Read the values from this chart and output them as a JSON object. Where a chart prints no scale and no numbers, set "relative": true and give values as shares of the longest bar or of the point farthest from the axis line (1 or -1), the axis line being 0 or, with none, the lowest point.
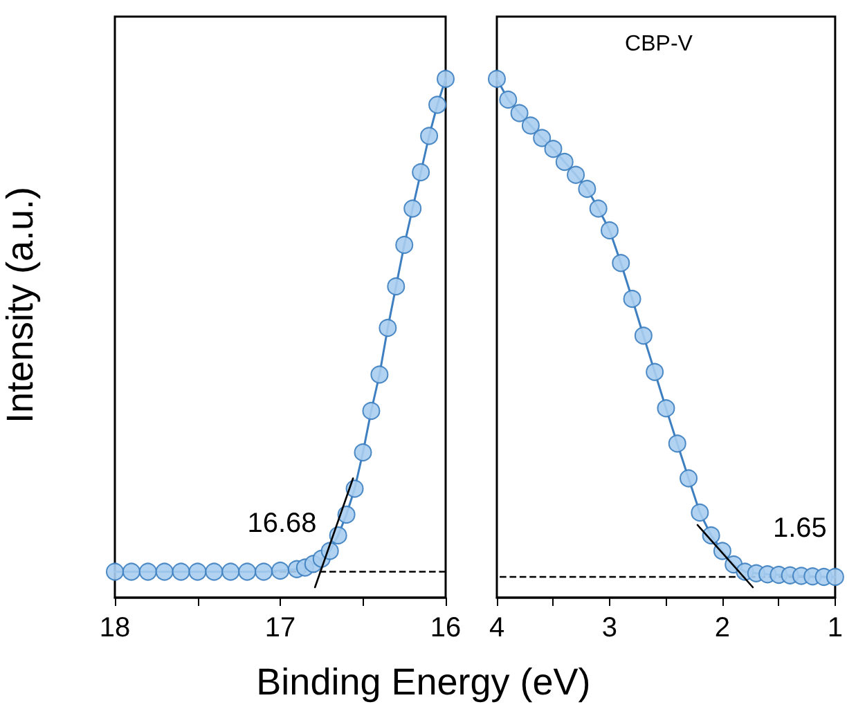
{
  "chart_data": [
    {
      "type": "line",
      "relative": true,
      "ylabel": "Intensity (a.u.)",
      "xlabel": "Binding Energy (eV)",
      "xlim": [
        18,
        16
      ],
      "xticks": [
        18,
        {
          "value": 17.5,
          "label": null
        },
        17,
        {
          "value": 16.5,
          "label": null
        },
        16
      ],
      "marker": "circle",
      "grid": false,
      "tick_labels": "x",
      "series": [
        {
          "color": "#a8cdee",
          "x": [
            18,
            17.9,
            17.8,
            17.7,
            17.6,
            17.5,
            17.4,
            17.3,
            17.2,
            17.1,
            17.0,
            16.9,
            16.85,
            16.8,
            16.75,
            16.7,
            16.65,
            16.6,
            16.55,
            16.5,
            16.45,
            16.4,
            16.35,
            16.3,
            16.25,
            16.2,
            16.15,
            16.1,
            16.05,
            16.0
          ],
          "values": [
            0.05,
            0.05,
            0.05,
            0.05,
            0.05,
            0.05,
            0.05,
            0.05,
            0.05,
            0.05,
            0.052,
            0.055,
            0.058,
            0.065,
            0.075,
            0.09,
            0.12,
            0.16,
            0.21,
            0.28,
            0.36,
            0.43,
            0.52,
            0.6,
            0.68,
            0.75,
            0.82,
            0.89,
            0.95,
            1.0
          ]
        },
        {
          "type": "line",
          "color": "#000000",
          "marker": "none",
          "x": [
            16.79,
            16.56
          ],
          "values": [
            0.02,
            0.23
          ]
        }
      ],
      "ref_lines": [
        {
          "axis": "y",
          "value": 0.05,
          "color": "#000000",
          "line_style": "dashed"
        }
      ],
      "annotations": [
        {
          "text": "16.68",
          "x": 16.68,
          "y": 0.05
        }
      ]
    },
    {
      "type": "line",
      "relative": true,
      "xlim": [
        4,
        1
      ],
      "xticks": [
        4,
        {
          "value": 3.5,
          "label": null
        },
        3,
        {
          "value": 2.5,
          "label": null
        },
        2,
        {
          "value": 1.5,
          "label": null
        },
        1
      ],
      "marker": "circle",
      "grid": false,
      "tick_labels": "x",
      "series": [
        {
          "color": "#a8cdee",
          "x": [
            4.0,
            3.9,
            3.8,
            3.7,
            3.6,
            3.5,
            3.4,
            3.3,
            3.2,
            3.1,
            3.0,
            2.9,
            2.8,
            2.7,
            2.6,
            2.5,
            2.4,
            2.3,
            2.2,
            2.1,
            2.0,
            1.9,
            1.8,
            1.7,
            1.6,
            1.5,
            1.4,
            1.3,
            1.2,
            1.1,
            1.0
          ],
          "values": [
            1.0,
            0.96,
            0.934,
            0.91,
            0.886,
            0.865,
            0.84,
            0.815,
            0.788,
            0.75,
            0.708,
            0.645,
            0.576,
            0.505,
            0.435,
            0.365,
            0.297,
            0.23,
            0.164,
            0.12,
            0.09,
            0.064,
            0.05,
            0.047,
            0.045,
            0.044,
            0.043,
            0.042,
            0.041,
            0.04,
            0.04
          ]
        },
        {
          "type": "line",
          "color": "#000000",
          "marker": "none",
          "x": [
            2.22,
            1.73
          ],
          "values": [
            0.14,
            0.02
          ]
        }
      ],
      "ref_lines": [
        {
          "axis": "y",
          "value": 0.04,
          "color": "#000000",
          "line_style": "dashed"
        }
      ],
      "annotations": [
        "CBP-V",
        {
          "text": "1.65",
          "x": 1.65,
          "y": 0.04
        }
      ]
    }
  ]
}
